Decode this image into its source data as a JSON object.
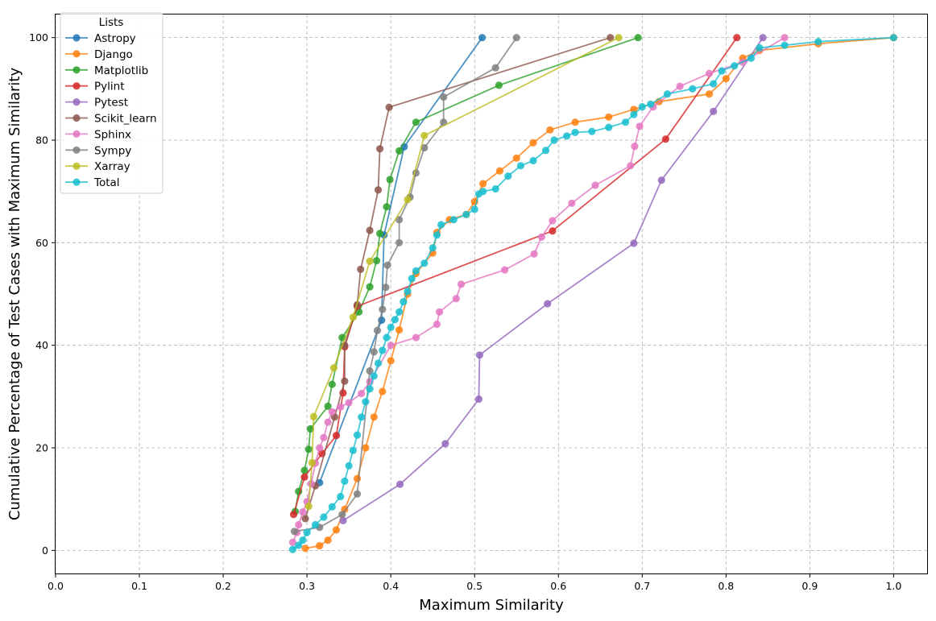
{
  "chart_data": {
    "type": "line",
    "title": "",
    "xlabel": "Maximum Similarity",
    "ylabel": "Cumulative Percentage of Test Cases with Maximum Similarity",
    "xlim": [
      0.0,
      1.04
    ],
    "ylim": [
      -4.5,
      104.5
    ],
    "xticks": [
      0.0,
      0.1,
      0.2,
      0.3,
      0.4,
      0.5,
      0.6,
      0.7,
      0.8,
      0.9,
      1.0
    ],
    "xtick_labels": [
      "0.0",
      "0.1",
      "0.2",
      "0.3",
      "0.4",
      "0.5",
      "0.6",
      "0.7",
      "0.8",
      "0.9",
      "1.0"
    ],
    "yticks": [
      0,
      20,
      40,
      60,
      80,
      100
    ],
    "ytick_labels": [
      "0",
      "20",
      "40",
      "60",
      "80",
      "100"
    ],
    "grid": true,
    "legend_title": "Lists",
    "legend_position": "top-left",
    "series": [
      {
        "name": "Astropy",
        "color": "#1f77b4",
        "points": [
          [
            0.315,
            13.2
          ],
          [
            0.389,
            44.9
          ],
          [
            0.392,
            61.5
          ],
          [
            0.416,
            78.7
          ],
          [
            0.509,
            100.0
          ]
        ]
      },
      {
        "name": "Django",
        "color": "#ff7f0e",
        "points": [
          [
            0.298,
            0.4
          ],
          [
            0.315,
            0.9
          ],
          [
            0.325,
            2.0
          ],
          [
            0.335,
            4.0
          ],
          [
            0.345,
            8.0
          ],
          [
            0.36,
            14.0
          ],
          [
            0.37,
            20.0
          ],
          [
            0.38,
            26.0
          ],
          [
            0.39,
            31.0
          ],
          [
            0.4,
            37.0
          ],
          [
            0.41,
            43.0
          ],
          [
            0.42,
            50.0
          ],
          [
            0.43,
            54.0
          ],
          [
            0.45,
            58.0
          ],
          [
            0.455,
            62.0
          ],
          [
            0.47,
            64.5
          ],
          [
            0.49,
            65.5
          ],
          [
            0.5,
            68.0
          ],
          [
            0.51,
            71.5
          ],
          [
            0.53,
            74.0
          ],
          [
            0.55,
            76.5
          ],
          [
            0.57,
            79.5
          ],
          [
            0.59,
            82.0
          ],
          [
            0.62,
            83.5
          ],
          [
            0.66,
            84.5
          ],
          [
            0.69,
            86.0
          ],
          [
            0.72,
            87.5
          ],
          [
            0.78,
            89.0
          ],
          [
            0.8,
            92.0
          ],
          [
            0.82,
            96.0
          ],
          [
            0.84,
            97.5
          ],
          [
            0.91,
            98.8
          ],
          [
            1.0,
            100.0
          ]
        ]
      },
      {
        "name": "Matplotlib",
        "color": "#2ca02c",
        "points": [
          [
            0.286,
            7.6
          ],
          [
            0.29,
            11.5
          ],
          [
            0.297,
            15.6
          ],
          [
            0.302,
            19.7
          ],
          [
            0.304,
            23.7
          ],
          [
            0.325,
            28.1
          ],
          [
            0.33,
            32.4
          ],
          [
            0.342,
            41.5
          ],
          [
            0.362,
            46.5
          ],
          [
            0.375,
            51.4
          ],
          [
            0.383,
            56.5
          ],
          [
            0.387,
            61.8
          ],
          [
            0.395,
            67.0
          ],
          [
            0.399,
            72.3
          ],
          [
            0.41,
            77.9
          ],
          [
            0.43,
            83.5
          ],
          [
            0.529,
            90.7
          ],
          [
            0.695,
            100.0
          ]
        ]
      },
      {
        "name": "Pylint",
        "color": "#d62728",
        "points": [
          [
            0.284,
            7.0
          ],
          [
            0.297,
            14.3
          ],
          [
            0.318,
            18.9
          ],
          [
            0.335,
            22.4
          ],
          [
            0.343,
            30.7
          ],
          [
            0.345,
            39.7
          ],
          [
            0.36,
            47.6
          ],
          [
            0.593,
            62.3
          ],
          [
            0.728,
            80.2
          ],
          [
            0.813,
            100.0
          ]
        ]
      },
      {
        "name": "Pytest",
        "color": "#9467bd",
        "points": [
          [
            0.343,
            5.8
          ],
          [
            0.411,
            12.9
          ],
          [
            0.465,
            20.8
          ],
          [
            0.505,
            29.5
          ],
          [
            0.506,
            38.1
          ],
          [
            0.587,
            48.1
          ],
          [
            0.69,
            59.9
          ],
          [
            0.723,
            72.2
          ],
          [
            0.785,
            85.6
          ],
          [
            0.844,
            100.0
          ]
        ]
      },
      {
        "name": "Scikit_learn",
        "color": "#8c564b",
        "points": [
          [
            0.298,
            6.2
          ],
          [
            0.31,
            12.6
          ],
          [
            0.333,
            26.0
          ],
          [
            0.345,
            33.0
          ],
          [
            0.345,
            40.0
          ],
          [
            0.36,
            47.9
          ],
          [
            0.364,
            54.8
          ],
          [
            0.375,
            62.4
          ],
          [
            0.385,
            70.3
          ],
          [
            0.387,
            78.3
          ],
          [
            0.398,
            86.4
          ],
          [
            0.662,
            100.0
          ]
        ]
      },
      {
        "name": "Sphinx",
        "color": "#e377c2",
        "points": [
          [
            0.283,
            1.6
          ],
          [
            0.288,
            3.5
          ],
          [
            0.29,
            5.0
          ],
          [
            0.295,
            7.5
          ],
          [
            0.3,
            9.5
          ],
          [
            0.305,
            13.0
          ],
          [
            0.31,
            17.0
          ],
          [
            0.315,
            20.0
          ],
          [
            0.32,
            22.0
          ],
          [
            0.325,
            25.0
          ],
          [
            0.33,
            27.0
          ],
          [
            0.34,
            28.0
          ],
          [
            0.35,
            28.8
          ],
          [
            0.365,
            30.6
          ],
          [
            0.375,
            32.9
          ],
          [
            0.4,
            40.0
          ],
          [
            0.43,
            41.5
          ],
          [
            0.455,
            44.1
          ],
          [
            0.458,
            46.5
          ],
          [
            0.478,
            49.1
          ],
          [
            0.484,
            51.9
          ],
          [
            0.536,
            54.7
          ],
          [
            0.571,
            57.8
          ],
          [
            0.58,
            61.1
          ],
          [
            0.593,
            64.3
          ],
          [
            0.616,
            67.7
          ],
          [
            0.644,
            71.2
          ],
          [
            0.686,
            75.0
          ],
          [
            0.691,
            78.8
          ],
          [
            0.697,
            82.7
          ],
          [
            0.713,
            86.5
          ],
          [
            0.745,
            90.5
          ],
          [
            0.78,
            93.0
          ],
          [
            0.82,
            95.2
          ],
          [
            0.87,
            100.0
          ]
        ]
      },
      {
        "name": "Sympy",
        "color": "#7f7f7f",
        "points": [
          [
            0.285,
            3.7
          ],
          [
            0.315,
            4.5
          ],
          [
            0.342,
            7.0
          ],
          [
            0.36,
            11.0
          ],
          [
            0.375,
            35.0
          ],
          [
            0.38,
            38.7
          ],
          [
            0.384,
            42.9
          ],
          [
            0.39,
            47.0
          ],
          [
            0.394,
            51.3
          ],
          [
            0.396,
            55.6
          ],
          [
            0.41,
            60.0
          ],
          [
            0.41,
            64.5
          ],
          [
            0.423,
            68.9
          ],
          [
            0.43,
            73.6
          ],
          [
            0.44,
            78.5
          ],
          [
            0.463,
            83.5
          ],
          [
            0.463,
            88.4
          ],
          [
            0.525,
            94.1
          ],
          [
            0.55,
            100.0
          ]
        ]
      },
      {
        "name": "Xarray",
        "color": "#bcbd22",
        "points": [
          [
            0.302,
            8.6
          ],
          [
            0.306,
            17.1
          ],
          [
            0.308,
            26.1
          ],
          [
            0.332,
            35.6
          ],
          [
            0.355,
            45.5
          ],
          [
            0.375,
            56.4
          ],
          [
            0.42,
            68.4
          ],
          [
            0.44,
            80.9
          ],
          [
            0.672,
            100.0
          ]
        ]
      },
      {
        "name": "Total",
        "color": "#17becf",
        "points": [
          [
            0.283,
            0.2
          ],
          [
            0.29,
            1.0
          ],
          [
            0.295,
            2.0
          ],
          [
            0.3,
            3.5
          ],
          [
            0.31,
            5.0
          ],
          [
            0.32,
            6.5
          ],
          [
            0.33,
            8.5
          ],
          [
            0.34,
            10.5
          ],
          [
            0.345,
            13.5
          ],
          [
            0.35,
            16.5
          ],
          [
            0.355,
            19.5
          ],
          [
            0.36,
            22.5
          ],
          [
            0.365,
            26.0
          ],
          [
            0.37,
            29.0
          ],
          [
            0.375,
            31.5
          ],
          [
            0.38,
            34.0
          ],
          [
            0.385,
            36.5
          ],
          [
            0.39,
            39.0
          ],
          [
            0.395,
            41.5
          ],
          [
            0.4,
            43.5
          ],
          [
            0.405,
            45.0
          ],
          [
            0.41,
            46.5
          ],
          [
            0.415,
            48.5
          ],
          [
            0.42,
            50.5
          ],
          [
            0.425,
            53.0
          ],
          [
            0.43,
            54.5
          ],
          [
            0.44,
            56.0
          ],
          [
            0.45,
            59.0
          ],
          [
            0.455,
            61.5
          ],
          [
            0.46,
            63.5
          ],
          [
            0.475,
            64.5
          ],
          [
            0.49,
            65.5
          ],
          [
            0.5,
            66.5
          ],
          [
            0.505,
            69.5
          ],
          [
            0.51,
            70.0
          ],
          [
            0.525,
            70.5
          ],
          [
            0.54,
            73.0
          ],
          [
            0.555,
            75.0
          ],
          [
            0.57,
            76.0
          ],
          [
            0.585,
            78.0
          ],
          [
            0.595,
            80.0
          ],
          [
            0.61,
            80.8
          ],
          [
            0.62,
            81.5
          ],
          [
            0.64,
            81.7
          ],
          [
            0.66,
            82.5
          ],
          [
            0.68,
            83.5
          ],
          [
            0.69,
            85.0
          ],
          [
            0.7,
            86.5
          ],
          [
            0.71,
            87.0
          ],
          [
            0.73,
            89.0
          ],
          [
            0.76,
            90.0
          ],
          [
            0.785,
            91.0
          ],
          [
            0.795,
            93.5
          ],
          [
            0.81,
            94.5
          ],
          [
            0.83,
            96.0
          ],
          [
            0.84,
            98.0
          ],
          [
            0.87,
            98.5
          ],
          [
            0.91,
            99.2
          ],
          [
            1.0,
            100.0
          ]
        ]
      }
    ]
  }
}
